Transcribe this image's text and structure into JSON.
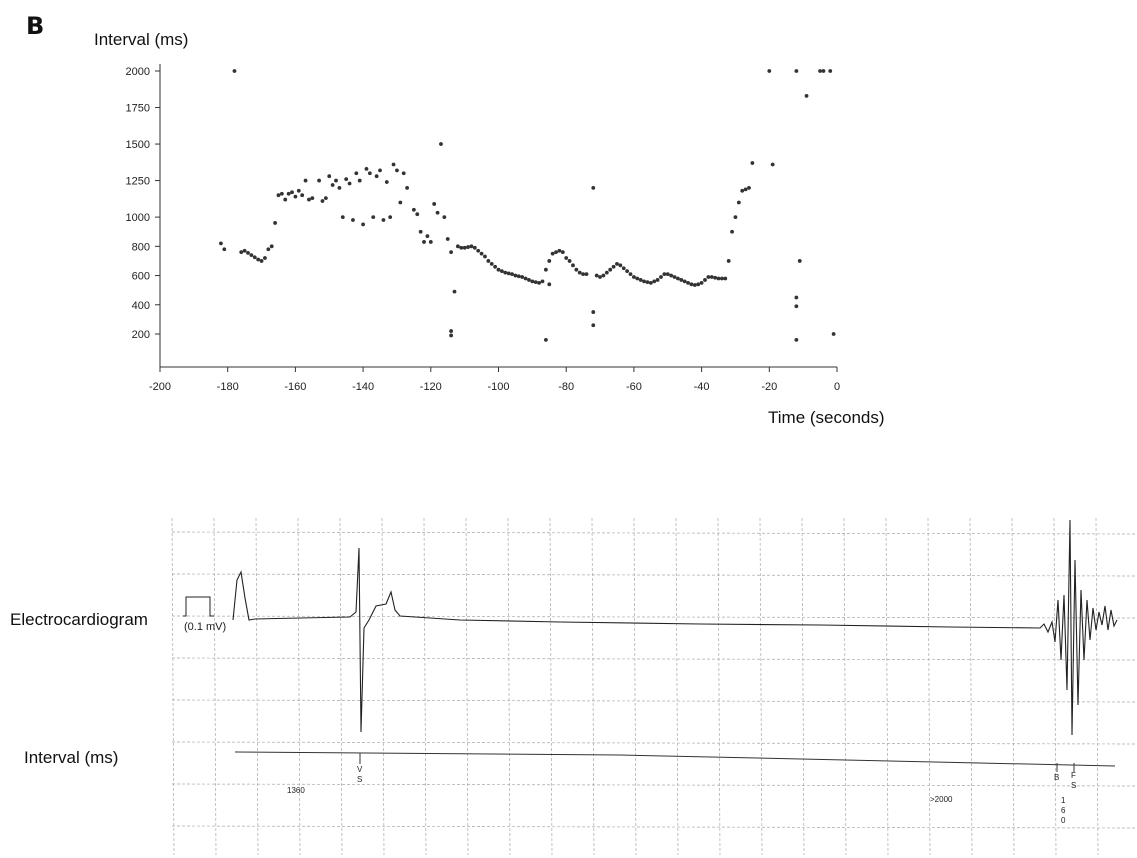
{
  "panel": {
    "letter": "B"
  },
  "chart_data": {
    "type": "scatter",
    "ylabel": "Interval (ms)",
    "xlabel": "Time (seconds)",
    "xlim": [
      -200,
      0
    ],
    "ylim": [
      0,
      2000
    ],
    "x_ticks": [
      "-200",
      "-180",
      "-160",
      "-140",
      "-120",
      "-100",
      "-80",
      "-60",
      "-40",
      "-20",
      "0"
    ],
    "y_ticks": [
      "200",
      "400",
      "600",
      "800",
      "1000",
      "1250",
      "1500",
      "1750",
      "2000"
    ],
    "grid": false,
    "series": [
      {
        "points": [
          [
            -178,
            2000
          ],
          [
            -182,
            820
          ],
          [
            -181,
            780
          ],
          [
            -176,
            760
          ],
          [
            -175,
            770
          ],
          [
            -174,
            755
          ],
          [
            -173,
            740
          ],
          [
            -172,
            725
          ],
          [
            -171,
            710
          ],
          [
            -170,
            700
          ],
          [
            -169,
            720
          ],
          [
            -168,
            780
          ],
          [
            -167,
            800
          ],
          [
            -166,
            960
          ],
          [
            -165,
            1150
          ],
          [
            -164,
            1160
          ],
          [
            -163,
            1120
          ],
          [
            -162,
            1160
          ],
          [
            -161,
            1170
          ],
          [
            -160,
            1140
          ],
          [
            -159,
            1180
          ],
          [
            -158,
            1150
          ],
          [
            -157,
            1250
          ],
          [
            -156,
            1120
          ],
          [
            -155,
            1130
          ],
          [
            -153,
            1250
          ],
          [
            -152,
            1110
          ],
          [
            -151,
            1130
          ],
          [
            -150,
            1280
          ],
          [
            -149,
            1220
          ],
          [
            -148,
            1250
          ],
          [
            -147,
            1200
          ],
          [
            -146,
            1000
          ],
          [
            -145,
            1260
          ],
          [
            -144,
            1230
          ],
          [
            -143,
            980
          ],
          [
            -142,
            1300
          ],
          [
            -141,
            1250
          ],
          [
            -140,
            950
          ],
          [
            -139,
            1330
          ],
          [
            -138,
            1300
          ],
          [
            -137,
            1000
          ],
          [
            -136,
            1280
          ],
          [
            -135,
            1320
          ],
          [
            -134,
            980
          ],
          [
            -133,
            1240
          ],
          [
            -132,
            1000
          ],
          [
            -131,
            1360
          ],
          [
            -130,
            1320
          ],
          [
            -129,
            1100
          ],
          [
            -128,
            1300
          ],
          [
            -127,
            1200
          ],
          [
            -125,
            1050
          ],
          [
            -124,
            1020
          ],
          [
            -123,
            900
          ],
          [
            -122,
            830
          ],
          [
            -121,
            870
          ],
          [
            -120,
            830
          ],
          [
            -119,
            1090
          ],
          [
            -118,
            1030
          ],
          [
            -117,
            1500
          ],
          [
            -116,
            1000
          ],
          [
            -115,
            850
          ],
          [
            -114,
            760
          ],
          [
            -113,
            490
          ],
          [
            -114,
            220
          ],
          [
            -114,
            190
          ],
          [
            -112,
            800
          ],
          [
            -111,
            790
          ],
          [
            -110,
            790
          ],
          [
            -109,
            795
          ],
          [
            -108,
            800
          ],
          [
            -107,
            790
          ],
          [
            -106,
            770
          ],
          [
            -105,
            750
          ],
          [
            -104,
            730
          ],
          [
            -103,
            700
          ],
          [
            -102,
            680
          ],
          [
            -101,
            660
          ],
          [
            -100,
            640
          ],
          [
            -99,
            630
          ],
          [
            -98,
            620
          ],
          [
            -97,
            615
          ],
          [
            -96,
            610
          ],
          [
            -95,
            600
          ],
          [
            -94,
            595
          ],
          [
            -93,
            590
          ],
          [
            -92,
            580
          ],
          [
            -91,
            570
          ],
          [
            -90,
            560
          ],
          [
            -89,
            555
          ],
          [
            -88,
            550
          ],
          [
            -87,
            560
          ],
          [
            -86,
            640
          ],
          [
            -85,
            700
          ],
          [
            -86,
            160
          ],
          [
            -85,
            540
          ],
          [
            -84,
            750
          ],
          [
            -83,
            760
          ],
          [
            -82,
            770
          ],
          [
            -81,
            760
          ],
          [
            -80,
            720
          ],
          [
            -79,
            700
          ],
          [
            -78,
            670
          ],
          [
            -77,
            640
          ],
          [
            -76,
            620
          ],
          [
            -75,
            610
          ],
          [
            -74,
            610
          ],
          [
            -72,
            1200
          ],
          [
            -72,
            350
          ],
          [
            -72,
            260
          ],
          [
            -71,
            600
          ],
          [
            -70,
            590
          ],
          [
            -69,
            600
          ],
          [
            -68,
            620
          ],
          [
            -67,
            640
          ],
          [
            -66,
            660
          ],
          [
            -65,
            680
          ],
          [
            -64,
            670
          ],
          [
            -63,
            650
          ],
          [
            -62,
            630
          ],
          [
            -61,
            610
          ],
          [
            -60,
            590
          ],
          [
            -59,
            580
          ],
          [
            -58,
            570
          ],
          [
            -57,
            560
          ],
          [
            -56,
            555
          ],
          [
            -55,
            550
          ],
          [
            -54,
            560
          ],
          [
            -53,
            570
          ],
          [
            -52,
            590
          ],
          [
            -51,
            610
          ],
          [
            -50,
            610
          ],
          [
            -49,
            600
          ],
          [
            -48,
            590
          ],
          [
            -47,
            580
          ],
          [
            -46,
            570
          ],
          [
            -45,
            560
          ],
          [
            -44,
            550
          ],
          [
            -43,
            540
          ],
          [
            -42,
            535
          ],
          [
            -41,
            540
          ],
          [
            -40,
            550
          ],
          [
            -39,
            570
          ],
          [
            -38,
            590
          ],
          [
            -37,
            590
          ],
          [
            -36,
            585
          ],
          [
            -35,
            580
          ],
          [
            -34,
            580
          ],
          [
            -33,
            580
          ],
          [
            -32,
            700
          ],
          [
            -31,
            900
          ],
          [
            -30,
            1000
          ],
          [
            -29,
            1100
          ],
          [
            -28,
            1180
          ],
          [
            -27,
            1190
          ],
          [
            -26,
            1200
          ],
          [
            -25,
            1370
          ],
          [
            -20,
            2000
          ],
          [
            -19,
            1360
          ],
          [
            -12,
            2000
          ],
          [
            -12,
            160
          ],
          [
            -12,
            450
          ],
          [
            -12,
            390
          ],
          [
            -11,
            700
          ],
          [
            -9,
            1830
          ],
          [
            -5,
            2000
          ],
          [
            -4,
            2000
          ],
          [
            -2,
            2000
          ],
          [
            -1,
            200
          ]
        ]
      }
    ]
  },
  "ecg": {
    "row_label": "Electrocardiogram",
    "interval_label": "Interval (ms)",
    "calibration": "(0.1 mV)",
    "interval_values": [
      "1360",
      ">2000"
    ],
    "marker_labels": [
      "V",
      "S",
      "B",
      "F",
      "S",
      "1",
      "6",
      "0"
    ]
  }
}
